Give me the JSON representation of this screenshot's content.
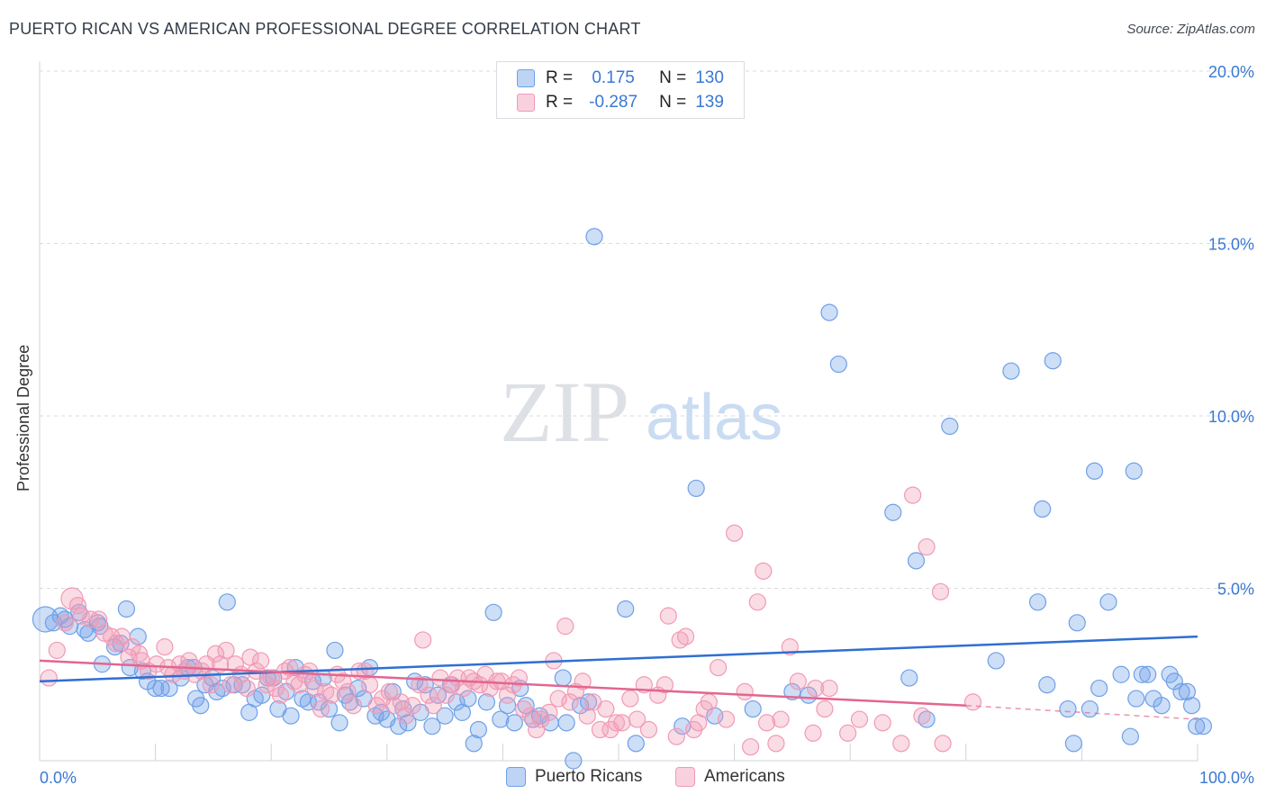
{
  "title": "PUERTO RICAN VS AMERICAN PROFESSIONAL DEGREE CORRELATION CHART",
  "source": "Source: ZipAtlas.com",
  "watermark": {
    "zip": "ZIP",
    "atlas": "atlas"
  },
  "legend": {
    "rows": [
      {
        "r_label": "R =",
        "r_value": "0.175",
        "n_label": "N =",
        "n_value": "130",
        "color": "#6fa0e8"
      },
      {
        "r_label": "R =",
        "r_value": "-0.287",
        "n_label": "N =",
        "n_value": "139",
        "color": "#f19ab5"
      }
    ]
  },
  "bottom_legend": [
    "Puerto Ricans",
    "Americans"
  ],
  "chart_data": {
    "type": "scatter",
    "title": "PUERTO RICAN VS AMERICAN PROFESSIONAL DEGREE CORRELATION CHART",
    "xlabel": "",
    "ylabel": "Professional Degree",
    "xlim": [
      0,
      100
    ],
    "ylim": [
      0,
      20
    ],
    "x_tick_labels": [
      "0.0%",
      "100.0%"
    ],
    "y_ticks": [
      5,
      10,
      15,
      20
    ],
    "y_tick_labels": [
      "5.0%",
      "10.0%",
      "15.0%",
      "20.0%"
    ],
    "grid": "horizontal dashed",
    "legend_position": "top-center",
    "series": [
      {
        "name": "Puerto Ricans",
        "color": "#6fa0e8",
        "line_color": "#2f6fd1",
        "trend": {
          "x": [
            0,
            100
          ],
          "y": [
            2.3,
            3.6
          ]
        },
        "points": [
          [
            0.5,
            4.1
          ],
          [
            1.2,
            4.0
          ],
          [
            1.8,
            4.2
          ],
          [
            2.2,
            4.1
          ],
          [
            2.6,
            3.9
          ],
          [
            3.4,
            4.3
          ],
          [
            3.9,
            3.8
          ],
          [
            4.2,
            3.7
          ],
          [
            5,
            4
          ],
          [
            5.2,
            3.9
          ],
          [
            5.4,
            2.8
          ],
          [
            6.5,
            3.3
          ],
          [
            7,
            3.4
          ],
          [
            7.5,
            4.4
          ],
          [
            7.8,
            2.7
          ],
          [
            8.5,
            3.6
          ],
          [
            8.9,
            2.6
          ],
          [
            9.3,
            2.3
          ],
          [
            10,
            2.1
          ],
          [
            10.5,
            2.1
          ],
          [
            11.2,
            2.1
          ],
          [
            12.2,
            2.4
          ],
          [
            12.8,
            2.7
          ],
          [
            13.3,
            2.7
          ],
          [
            13.5,
            1.8
          ],
          [
            13.9,
            1.6
          ],
          [
            14.3,
            2.2
          ],
          [
            14.9,
            2.4
          ],
          [
            15.3,
            2
          ],
          [
            15.8,
            2.1
          ],
          [
            16.2,
            4.6
          ],
          [
            16.8,
            2.2
          ],
          [
            17.5,
            2.2
          ],
          [
            18.1,
            1.4
          ],
          [
            18.6,
            1.8
          ],
          [
            19.2,
            1.9
          ],
          [
            19.7,
            2.4
          ],
          [
            20.2,
            2.4
          ],
          [
            20.6,
            1.5
          ],
          [
            21.3,
            2
          ],
          [
            21.7,
            1.3
          ],
          [
            22.1,
            2.7
          ],
          [
            22.7,
            1.8
          ],
          [
            23.2,
            1.7
          ],
          [
            23.6,
            2.3
          ],
          [
            24.1,
            1.7
          ],
          [
            24.5,
            2.4
          ],
          [
            25,
            1.5
          ],
          [
            25.5,
            3.2
          ],
          [
            25.9,
            1.1
          ],
          [
            26.4,
            1.9
          ],
          [
            26.8,
            1.7
          ],
          [
            27.5,
            2.1
          ],
          [
            28,
            1.8
          ],
          [
            28.5,
            2.7
          ],
          [
            29,
            1.3
          ],
          [
            29.5,
            1.4
          ],
          [
            30,
            1.2
          ],
          [
            30.5,
            2
          ],
          [
            31,
            1
          ],
          [
            31.4,
            1.5
          ],
          [
            31.8,
            1.1
          ],
          [
            32.4,
            2.3
          ],
          [
            32.9,
            1.4
          ],
          [
            33.3,
            2.2
          ],
          [
            33.9,
            1
          ],
          [
            34.4,
            1.9
          ],
          [
            35,
            1.3
          ],
          [
            35.5,
            2.2
          ],
          [
            36,
            1.7
          ],
          [
            36.5,
            1.4
          ],
          [
            37,
            1.8
          ],
          [
            37.5,
            0.5
          ],
          [
            37.9,
            0.9
          ],
          [
            38.6,
            1.7
          ],
          [
            39.2,
            4.3
          ],
          [
            39.8,
            1.2
          ],
          [
            40.4,
            1.6
          ],
          [
            41,
            1.1
          ],
          [
            41.5,
            2.1
          ],
          [
            42,
            1.6
          ],
          [
            42.6,
            1.2
          ],
          [
            43.2,
            1.3
          ],
          [
            44.1,
            1.1
          ],
          [
            45.2,
            2.4
          ],
          [
            45.5,
            1.1
          ],
          [
            46.1,
            0
          ],
          [
            46.7,
            1.6
          ],
          [
            47.4,
            1.7
          ],
          [
            47.9,
            15.2
          ],
          [
            50.6,
            4.4
          ],
          [
            51.5,
            0.5
          ],
          [
            55.5,
            1.0
          ],
          [
            56.7,
            7.9
          ],
          [
            58.3,
            1.3
          ],
          [
            61.6,
            1.5
          ],
          [
            65,
            2
          ],
          [
            66.4,
            1.9
          ],
          [
            68.2,
            13
          ],
          [
            69,
            11.5
          ],
          [
            73.7,
            7.2
          ],
          [
            75.1,
            2.4
          ],
          [
            75.7,
            5.8
          ],
          [
            76.6,
            1.2
          ],
          [
            78.6,
            9.7
          ],
          [
            82.6,
            2.9
          ],
          [
            83.9,
            11.3
          ],
          [
            86.2,
            4.6
          ],
          [
            86.6,
            7.3
          ],
          [
            87,
            2.2
          ],
          [
            88.8,
            1.5
          ],
          [
            89.3,
            0.5
          ],
          [
            89.6,
            4
          ],
          [
            90.7,
            1.5
          ],
          [
            91.1,
            8.4
          ],
          [
            91.5,
            2.1
          ],
          [
            92.3,
            4.6
          ],
          [
            93.4,
            2.5
          ],
          [
            94.2,
            0.7
          ],
          [
            94.5,
            8.4
          ],
          [
            94.7,
            1.8
          ],
          [
            95.2,
            2.5
          ],
          [
            95.7,
            2.5
          ],
          [
            96.2,
            1.8
          ],
          [
            96.9,
            1.6
          ],
          [
            97.6,
            2.5
          ],
          [
            98,
            2.3
          ],
          [
            98.6,
            2
          ],
          [
            99.1,
            2
          ],
          [
            99.5,
            1.6
          ],
          [
            99.9,
            1.0
          ],
          [
            100.5,
            1.0
          ],
          [
            87.5,
            11.6
          ]
        ]
      },
      {
        "name": "Americans",
        "color": "#f19ab5",
        "line_color": "#e2668f",
        "trend": {
          "x": [
            0,
            80
          ],
          "y": [
            2.9,
            1.6
          ]
        },
        "trend_dashed": {
          "x": [
            80,
            100
          ],
          "y": [
            1.6,
            1.2
          ]
        },
        "points": [
          [
            0.8,
            2.4
          ],
          [
            1.5,
            3.2
          ],
          [
            2.2,
            4.0
          ],
          [
            2.8,
            4.7
          ],
          [
            3.3,
            4.5
          ],
          [
            3.6,
            4.2
          ],
          [
            4.4,
            4.1
          ],
          [
            5.1,
            4.1
          ],
          [
            5.6,
            3.7
          ],
          [
            6.2,
            3.6
          ],
          [
            6.6,
            3.4
          ],
          [
            7.1,
            3.6
          ],
          [
            7.7,
            3.0
          ],
          [
            8.0,
            3.3
          ],
          [
            8.6,
            3.1
          ],
          [
            8.8,
            2.9
          ],
          [
            9.4,
            2.6
          ],
          [
            10.1,
            2.8
          ],
          [
            10.8,
            3.3
          ],
          [
            11.1,
            2.7
          ],
          [
            11.5,
            2.5
          ],
          [
            12.1,
            2.8
          ],
          [
            12.5,
            2.6
          ],
          [
            12.9,
            2.9
          ],
          [
            13.4,
            2.5
          ],
          [
            14,
            2.6
          ],
          [
            14.4,
            2.8
          ],
          [
            14.8,
            2.2
          ],
          [
            15.2,
            3.1
          ],
          [
            15.6,
            2.8
          ],
          [
            16.1,
            3.2
          ],
          [
            16.5,
            2.2
          ],
          [
            16.9,
            2.8
          ],
          [
            17.4,
            2.5
          ],
          [
            17.9,
            2.1
          ],
          [
            18.2,
            3.0
          ],
          [
            18.7,
            2.6
          ],
          [
            19.1,
            2.9
          ],
          [
            19.6,
            2.2
          ],
          [
            20,
            2.4
          ],
          [
            20.4,
            2.1
          ],
          [
            20.8,
            1.9
          ],
          [
            21.2,
            2.6
          ],
          [
            21.6,
            2.7
          ],
          [
            22,
            2.3
          ],
          [
            22.4,
            2.2
          ],
          [
            22.9,
            2.5
          ],
          [
            23.3,
            2.6
          ],
          [
            23.8,
            2.1
          ],
          [
            24.3,
            1.5
          ],
          [
            24.7,
            2.0
          ],
          [
            25.2,
            1.9
          ],
          [
            25.7,
            2.5
          ],
          [
            26.2,
            2.3
          ],
          [
            26.6,
            2.0
          ],
          [
            27.1,
            1.6
          ],
          [
            27.6,
            2.6
          ],
          [
            28.1,
            2.6
          ],
          [
            28.5,
            2.2
          ],
          [
            29.1,
            1.6
          ],
          [
            29.6,
            1.8
          ],
          [
            30.2,
            2.0
          ],
          [
            30.6,
            1.6
          ],
          [
            31.2,
            1.7
          ],
          [
            31.6,
            1.3
          ],
          [
            32.2,
            1.6
          ],
          [
            32.8,
            2.2
          ],
          [
            33.1,
            3.5
          ],
          [
            33.6,
            1.9
          ],
          [
            34,
            1.6
          ],
          [
            34.6,
            2.4
          ],
          [
            35.1,
            1.9
          ],
          [
            35.6,
            2.2
          ],
          [
            36.1,
            2.4
          ],
          [
            36.6,
            2.1
          ],
          [
            37.1,
            2.4
          ],
          [
            37.5,
            2.3
          ],
          [
            38,
            2.2
          ],
          [
            38.5,
            2.5
          ],
          [
            38.9,
            2.1
          ],
          [
            39.5,
            2.3
          ],
          [
            39.9,
            2.3
          ],
          [
            40.4,
            1.9
          ],
          [
            40.9,
            2.2
          ],
          [
            41.4,
            2.4
          ],
          [
            41.8,
            1.5
          ],
          [
            42.4,
            1.3
          ],
          [
            42.9,
            0.9
          ],
          [
            43.3,
            1.2
          ],
          [
            44,
            1.4
          ],
          [
            44.4,
            2.9
          ],
          [
            44.8,
            1.8
          ],
          [
            45.4,
            3.9
          ],
          [
            45.8,
            1.7
          ],
          [
            46.3,
            2.0
          ],
          [
            46.9,
            2.3
          ],
          [
            47.3,
            1.3
          ],
          [
            47.8,
            1.7
          ],
          [
            48.4,
            0.9
          ],
          [
            48.9,
            1.5
          ],
          [
            49.3,
            0.9
          ],
          [
            49.8,
            1.1
          ],
          [
            50.3,
            1.1
          ],
          [
            51,
            1.8
          ],
          [
            51.6,
            1.2
          ],
          [
            52.2,
            2.2
          ],
          [
            52.6,
            0.9
          ],
          [
            53.4,
            1.9
          ],
          [
            54,
            2.2
          ],
          [
            54.3,
            4.2
          ],
          [
            55,
            0.7
          ],
          [
            55.3,
            3.5
          ],
          [
            55.8,
            3.6
          ],
          [
            56.5,
            0.9
          ],
          [
            56.9,
            1.1
          ],
          [
            57.4,
            1.5
          ],
          [
            57.8,
            1.7
          ],
          [
            58.6,
            2.7
          ],
          [
            59.3,
            1.2
          ],
          [
            60,
            6.6
          ],
          [
            60.9,
            2.0
          ],
          [
            61.4,
            0.4
          ],
          [
            62,
            4.6
          ],
          [
            62.5,
            5.5
          ],
          [
            62.8,
            1.1
          ],
          [
            63.6,
            0.5
          ],
          [
            64,
            1.2
          ],
          [
            64.8,
            3.3
          ],
          [
            65.5,
            2.3
          ],
          [
            66.8,
            0.8
          ],
          [
            67,
            2.1
          ],
          [
            67.8,
            1.5
          ],
          [
            68.2,
            2.1
          ],
          [
            69.8,
            0.8
          ],
          [
            70.8,
            1.2
          ],
          [
            72.8,
            1.1
          ],
          [
            74.4,
            0.5
          ],
          [
            75.4,
            7.7
          ],
          [
            76.6,
            6.2
          ],
          [
            77.8,
            4.9
          ],
          [
            78,
            0.5
          ],
          [
            80.6,
            1.7
          ],
          [
            76.2,
            1.3
          ]
        ]
      }
    ]
  }
}
